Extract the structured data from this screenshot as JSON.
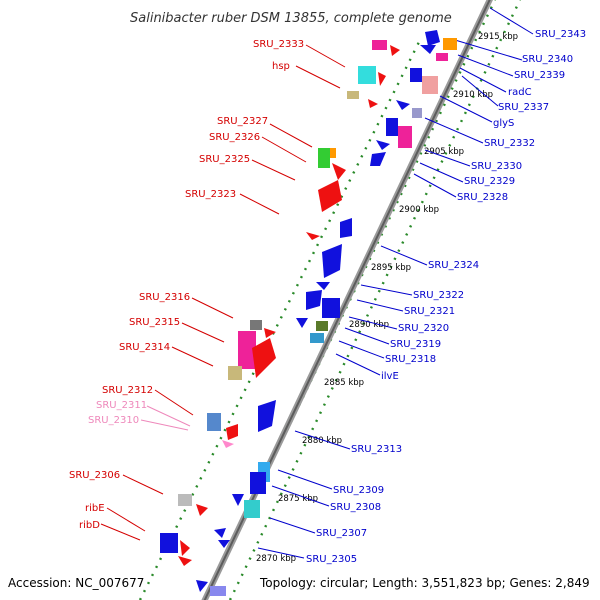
{
  "title": "Salinibacter ruber DSM 13855, complete genome",
  "accession": "Accession: NC_007677",
  "topology": "Topology: circular; Length: 3,551,823 bp; Genes: 2,849",
  "colors": {
    "red_label": "#d40000",
    "pink_label": "#ee88bb",
    "blue_label": "#0000cc",
    "backbone": "#808080",
    "tick_green": "#2a8a2a"
  },
  "kbp_marks": [
    "2915 kbp",
    "2910 kbp",
    "2905 kbp",
    "2900 kbp",
    "2895 kbp",
    "2890 kbp",
    "2885 kbp",
    "2880 kbp",
    "2875 kbp",
    "2870 kbp"
  ],
  "left_genes": [
    "SRU_2333",
    "hsp",
    "SRU_2327",
    "SRU_2326",
    "SRU_2325",
    "SRU_2323",
    "SRU_2316",
    "SRU_2315",
    "SRU_2314",
    "SRU_2312",
    "SRU_2311",
    "SRU_2310",
    "SRU_2306",
    "ribE",
    "ribD"
  ],
  "right_genes": [
    "SRU_2343",
    "SRU_2340",
    "SRU_2339",
    "radC",
    "SRU_2337",
    "glyS",
    "SRU_2332",
    "SRU_2330",
    "SRU_2329",
    "SRU_2328",
    "SRU_2324",
    "SRU_2322",
    "SRU_2321",
    "SRU_2320",
    "SRU_2319",
    "SRU_2318",
    "ilvE",
    "SRU_2313",
    "SRU_2309",
    "SRU_2308",
    "SRU_2307",
    "SRU_2305"
  ]
}
